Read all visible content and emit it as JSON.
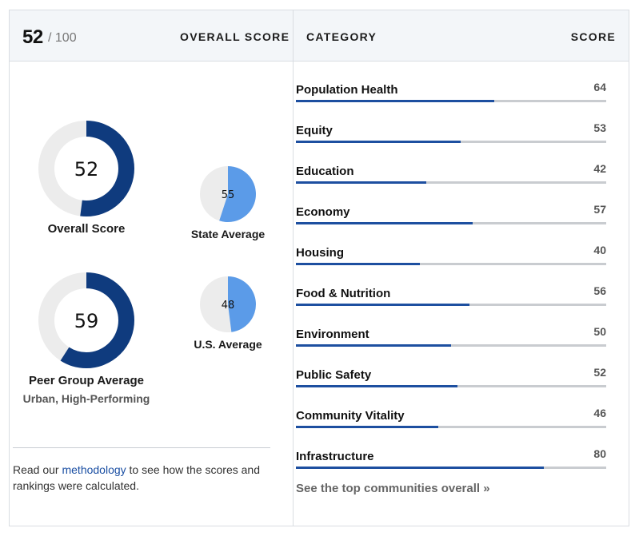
{
  "overall": {
    "score": 52,
    "score_text": "52",
    "total_text": "/ 100",
    "label": "OVERALL SCORE"
  },
  "categories_header": {
    "category_label": "CATEGORY",
    "score_label": "SCORE"
  },
  "colors": {
    "dark_blue": "#0f3b7e",
    "light_blue": "#5b9be8",
    "track": "#ececec",
    "bar": "#1d4fa0"
  },
  "donuts": {
    "overall": {
      "value": 52,
      "value_text": "52",
      "label": "Overall Score"
    },
    "peer": {
      "value": 59,
      "value_text": "59",
      "label": "Peer Group Average",
      "sublabel": "Urban, High-Performing"
    },
    "state": {
      "value": 55,
      "value_text": "55",
      "label": "State Average"
    },
    "us": {
      "value": 48,
      "value_text": "48",
      "label": "U.S. Average"
    }
  },
  "methodology": {
    "prefix": "Read our ",
    "link": "methodology",
    "suffix": " to see how the scores and rankings were calculated."
  },
  "categories": [
    {
      "name": "Population Health",
      "score": 64,
      "score_text": "64"
    },
    {
      "name": "Equity",
      "score": 53,
      "score_text": "53"
    },
    {
      "name": "Education",
      "score": 42,
      "score_text": "42"
    },
    {
      "name": "Economy",
      "score": 57,
      "score_text": "57"
    },
    {
      "name": "Housing",
      "score": 40,
      "score_text": "40"
    },
    {
      "name": "Food & Nutrition",
      "score": 56,
      "score_text": "56"
    },
    {
      "name": "Environment",
      "score": 50,
      "score_text": "50"
    },
    {
      "name": "Public Safety",
      "score": 52,
      "score_text": "52"
    },
    {
      "name": "Community Vitality",
      "score": 46,
      "score_text": "46"
    },
    {
      "name": "Infrastructure",
      "score": 80,
      "score_text": "80"
    }
  ],
  "see_top_link": "See the top communities overall »"
}
